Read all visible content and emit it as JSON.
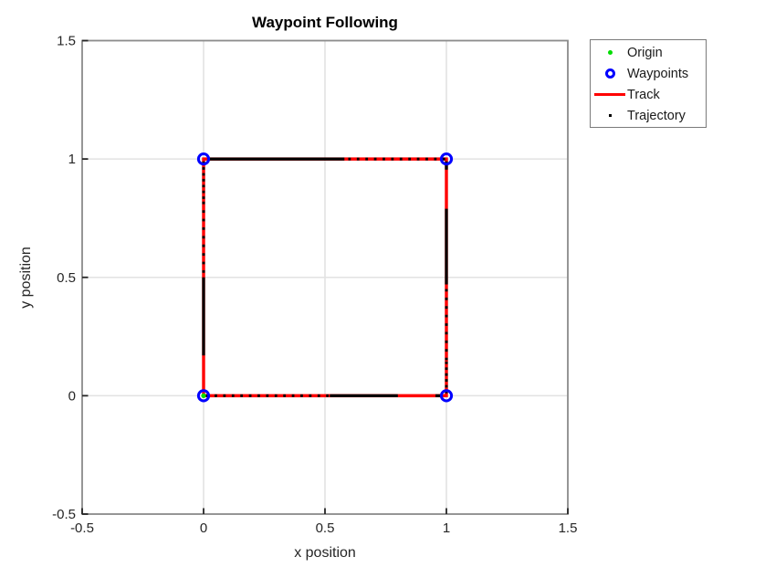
{
  "figure": {
    "title": "Waypoint Following",
    "xlabel": "x position",
    "ylabel": "y position"
  },
  "legend": {
    "position": "outside-top-right",
    "entries": [
      {
        "label": "Origin",
        "marker": "green-filled-dot"
      },
      {
        "label": "Waypoints",
        "marker": "blue-open-circle"
      },
      {
        "label": "Track",
        "marker": "red-line"
      },
      {
        "label": "Trajectory",
        "marker": "black-dot"
      }
    ]
  },
  "colors": {
    "origin": "#00dd00",
    "waypoints": "#0000ff",
    "track": "#ff0000",
    "trajectory": "#000000",
    "grid": "#e2e2e2",
    "axis_box": "#8c8c8c",
    "tick": "#262626",
    "text": "#262626",
    "legend_border": "#7a7a7a"
  },
  "chart_data": {
    "type": "line",
    "title": "Waypoint Following",
    "xlabel": "x position",
    "ylabel": "y position",
    "xlim": [
      -0.5,
      1.5
    ],
    "ylim": [
      -0.5,
      1.5
    ],
    "xticks": [
      -0.5,
      0,
      0.5,
      1,
      1.5
    ],
    "yticks": [
      -0.5,
      0,
      0.5,
      1,
      1.5
    ],
    "xtick_labels": [
      "-0.5",
      "0",
      "0.5",
      "1",
      "1.5"
    ],
    "ytick_labels": [
      "-0.5",
      "0",
      "0.5",
      "1",
      "1.5"
    ],
    "grid": true,
    "legend_position": "outside-top-right",
    "series": [
      {
        "name": "Origin",
        "type": "scatter",
        "marker": "filled-dot",
        "color": "#00dd00",
        "points": [
          [
            0,
            0
          ]
        ]
      },
      {
        "name": "Waypoints",
        "type": "scatter",
        "marker": "open-circle",
        "color": "#0000ff",
        "points": [
          [
            0,
            0
          ],
          [
            1,
            0
          ],
          [
            1,
            1
          ],
          [
            0,
            1
          ]
        ]
      },
      {
        "name": "Track",
        "type": "line",
        "color": "#ff0000",
        "points": [
          [
            0,
            0
          ],
          [
            1,
            0
          ],
          [
            1,
            1
          ],
          [
            0,
            1
          ],
          [
            0,
            0
          ]
        ]
      },
      {
        "name": "Trajectory",
        "type": "dotted-line",
        "color": "#000000",
        "segments": [
          {
            "x1": 0.01,
            "y1": 0,
            "x2": 0.52,
            "y2": 0,
            "style": "dotted"
          },
          {
            "x1": 0.52,
            "y1": 0,
            "x2": 0.8,
            "y2": 0,
            "style": "solid"
          },
          {
            "x1": 0.955,
            "y1": 0,
            "x2": 0.985,
            "y2": 0,
            "style": "solid"
          },
          {
            "x1": 1,
            "y1": 0.01,
            "x2": 1,
            "y2": 0.15,
            "style": "dense"
          },
          {
            "x1": 1,
            "y1": 0.15,
            "x2": 1,
            "y2": 0.47,
            "style": "dotted"
          },
          {
            "x1": 1,
            "y1": 0.47,
            "x2": 1,
            "y2": 0.79,
            "style": "solid"
          },
          {
            "x1": 1,
            "y1": 0.955,
            "x2": 1,
            "y2": 0.99,
            "style": "solid"
          },
          {
            "x1": 0.995,
            "y1": 1,
            "x2": 0.58,
            "y2": 1,
            "style": "dotted"
          },
          {
            "x1": 0.58,
            "y1": 1,
            "x2": 0.02,
            "y2": 1,
            "style": "solid"
          },
          {
            "x1": 0,
            "y1": 0.99,
            "x2": 0,
            "y2": 0.82,
            "style": "dense"
          },
          {
            "x1": 0,
            "y1": 0.82,
            "x2": 0,
            "y2": 0.5,
            "style": "dotted"
          },
          {
            "x1": 0,
            "y1": 0.5,
            "x2": 0,
            "y2": 0.17,
            "style": "solid"
          }
        ]
      }
    ]
  }
}
